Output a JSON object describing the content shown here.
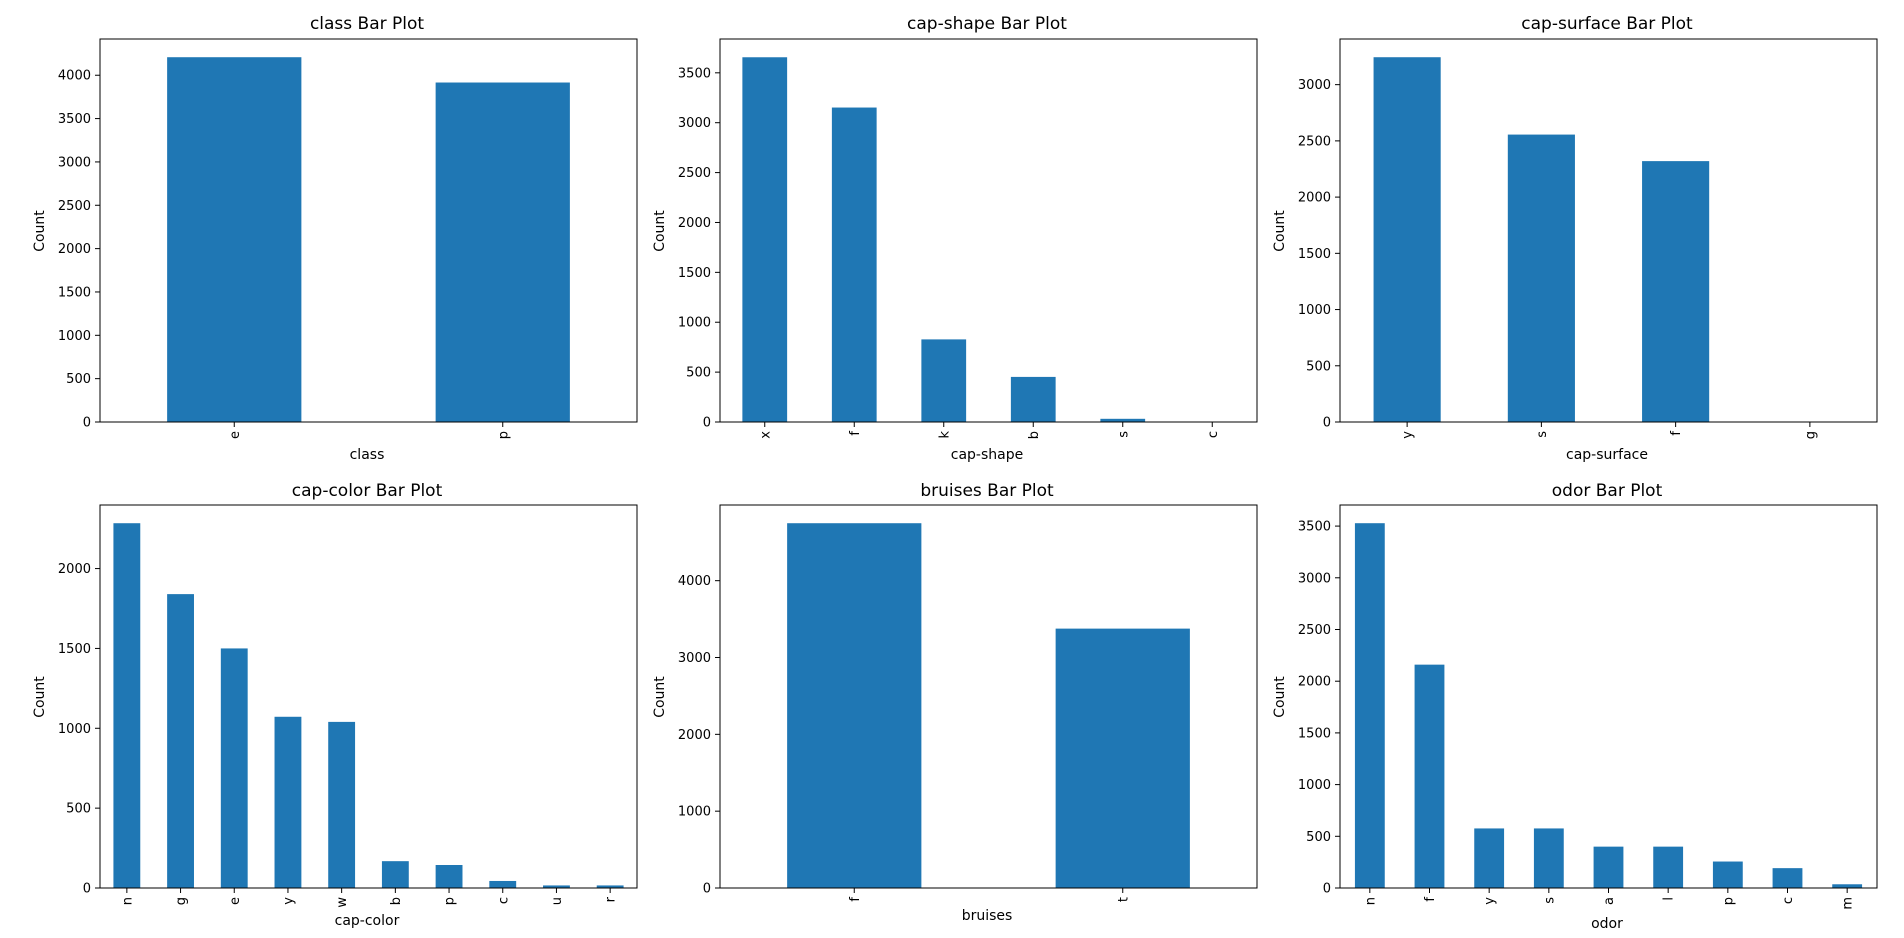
{
  "colors": {
    "bar": "#1f77b4",
    "axis": "#000000",
    "background": "#ffffff"
  },
  "chart_data": [
    {
      "type": "bar",
      "title": "class Bar Plot",
      "xlabel": "class",
      "ylabel": "Count",
      "categories": [
        "e",
        "p"
      ],
      "values": [
        4208,
        3916
      ],
      "ylim": [
        0,
        4418
      ],
      "yticks": [
        0,
        500,
        1000,
        1500,
        2000,
        2500,
        3000,
        3500,
        4000
      ],
      "grid": false
    },
    {
      "type": "bar",
      "title": "cap-shape Bar Plot",
      "xlabel": "cap-shape",
      "ylabel": "Count",
      "categories": [
        "x",
        "f",
        "k",
        "b",
        "s",
        "c"
      ],
      "values": [
        3656,
        3152,
        828,
        452,
        32,
        4
      ],
      "ylim": [
        0,
        3839
      ],
      "yticks": [
        0,
        500,
        1000,
        1500,
        2000,
        2500,
        3000,
        3500
      ],
      "grid": false
    },
    {
      "type": "bar",
      "title": "cap-surface Bar Plot",
      "xlabel": "cap-surface",
      "ylabel": "Count",
      "categories": [
        "y",
        "s",
        "f",
        "g"
      ],
      "values": [
        3244,
        2556,
        2320,
        4
      ],
      "ylim": [
        0,
        3406
      ],
      "yticks": [
        0,
        500,
        1000,
        1500,
        2000,
        2500,
        3000
      ],
      "grid": false
    },
    {
      "type": "bar",
      "title": "cap-color Bar Plot",
      "xlabel": "cap-color",
      "ylabel": "Count",
      "categories": [
        "n",
        "g",
        "e",
        "y",
        "w",
        "b",
        "p",
        "c",
        "u",
        "r"
      ],
      "values": [
        2284,
        1840,
        1500,
        1072,
        1040,
        168,
        144,
        44,
        16,
        16
      ],
      "ylim": [
        0,
        2398
      ],
      "yticks": [
        0,
        500,
        1000,
        1500,
        2000
      ],
      "grid": false
    },
    {
      "type": "bar",
      "title": "bruises Bar Plot",
      "xlabel": "bruises",
      "ylabel": "Count",
      "categories": [
        "f",
        "t"
      ],
      "values": [
        4748,
        3376
      ],
      "ylim": [
        0,
        4985
      ],
      "yticks": [
        0,
        1000,
        2000,
        3000,
        4000
      ],
      "grid": false
    },
    {
      "type": "bar",
      "title": "odor Bar Plot",
      "xlabel": "odor",
      "ylabel": "Count",
      "categories": [
        "n",
        "f",
        "y",
        "s",
        "a",
        "l",
        "p",
        "c",
        "m"
      ],
      "values": [
        3528,
        2160,
        576,
        576,
        400,
        400,
        256,
        192,
        36
      ],
      "ylim": [
        0,
        3704
      ],
      "yticks": [
        0,
        500,
        1000,
        1500,
        2000,
        2500,
        3000,
        3500
      ],
      "grid": false
    }
  ]
}
